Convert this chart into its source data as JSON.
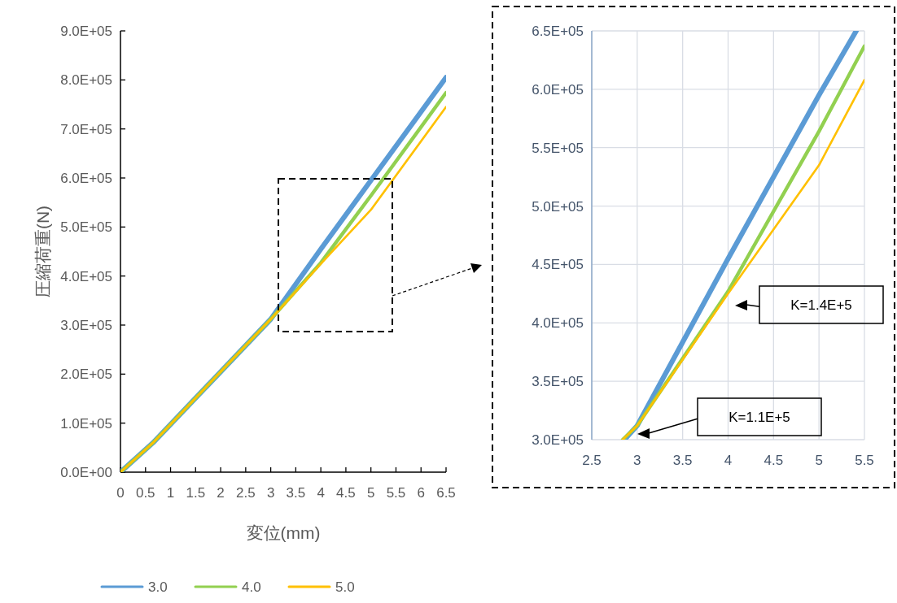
{
  "chart_data": [
    {
      "type": "line",
      "xlabel": "変位(mm)",
      "ylabel": "圧縮荷重(N)",
      "x": [
        0,
        0.65,
        3,
        4,
        5,
        6.5
      ],
      "series": [
        {
          "name": "3.0",
          "color": "#5b9bd5",
          "values": [
            0,
            60000,
            312000,
            455000,
            595000,
            805000
          ]
        },
        {
          "name": "4.0",
          "color": "#92d050",
          "values": [
            0,
            60000,
            312000,
            427000,
            564000,
            774000
          ]
        },
        {
          "name": "5.0",
          "color": "#ffc000",
          "values": [
            0,
            60000,
            312000,
            425000,
            535000,
            745000
          ]
        }
      ],
      "xlim": [
        0,
        6.5
      ],
      "ylim": [
        0,
        900000
      ],
      "xticks": [
        0,
        0.5,
        1,
        1.5,
        2,
        2.5,
        3,
        3.5,
        4,
        4.5,
        5,
        5.5,
        6,
        6.5
      ],
      "yticks": [
        {
          "value": 0,
          "label": "0.0E+00"
        },
        {
          "value": 100000,
          "label": "1.0E+05"
        },
        {
          "value": 200000,
          "label": "2.0E+05"
        },
        {
          "value": 300000,
          "label": "3.0E+05"
        },
        {
          "value": 400000,
          "label": "4.0E+05"
        },
        {
          "value": 500000,
          "label": "5.0E+05"
        },
        {
          "value": 600000,
          "label": "6.0E+05"
        },
        {
          "value": 700000,
          "label": "7.0E+05"
        },
        {
          "value": 800000,
          "label": "8.0E+05"
        },
        {
          "value": 900000,
          "label": "9.0E+05"
        }
      ],
      "grid": false,
      "legend": "bottom",
      "marker": "none",
      "line_style": "solid"
    },
    {
      "type": "line",
      "series": [
        {
          "color": "#5b9bd5",
          "x": [
            2.86,
            3,
            4,
            5,
            5.41
          ],
          "values": [
            300000,
            312000,
            455000,
            595000,
            650000
          ]
        },
        {
          "color": "#92d050",
          "x": [
            2.84,
            3,
            4,
            5,
            5.5
          ],
          "values": [
            300000,
            312000,
            427000,
            564000,
            637000
          ]
        },
        {
          "color": "#ffc000",
          "x": [
            2.84,
            3,
            4,
            5,
            5.5
          ],
          "values": [
            300000,
            312000,
            425000,
            535000,
            608000
          ]
        }
      ],
      "xlim": [
        2.5,
        5.5
      ],
      "ylim": [
        300000,
        650000
      ],
      "xticks": [
        2.5,
        3,
        3.5,
        4,
        4.5,
        5,
        5.5
      ],
      "yticks": [
        {
          "value": 300000,
          "label": "3.0E+05"
        },
        {
          "value": 350000,
          "label": "3.5E+05"
        },
        {
          "value": 400000,
          "label": "4.0E+05"
        },
        {
          "value": 450000,
          "label": "4.5E+05"
        },
        {
          "value": 500000,
          "label": "5.0E+05"
        },
        {
          "value": 550000,
          "label": "5.5E+05"
        },
        {
          "value": 600000,
          "label": "6.0E+05"
        },
        {
          "value": 650000,
          "label": "6.5E+05"
        }
      ],
      "annotations": [
        "K=1.1E+5",
        "K=1.4E+5"
      ],
      "grid": true,
      "legend": false,
      "marker": "none",
      "line_style": "solid"
    }
  ]
}
